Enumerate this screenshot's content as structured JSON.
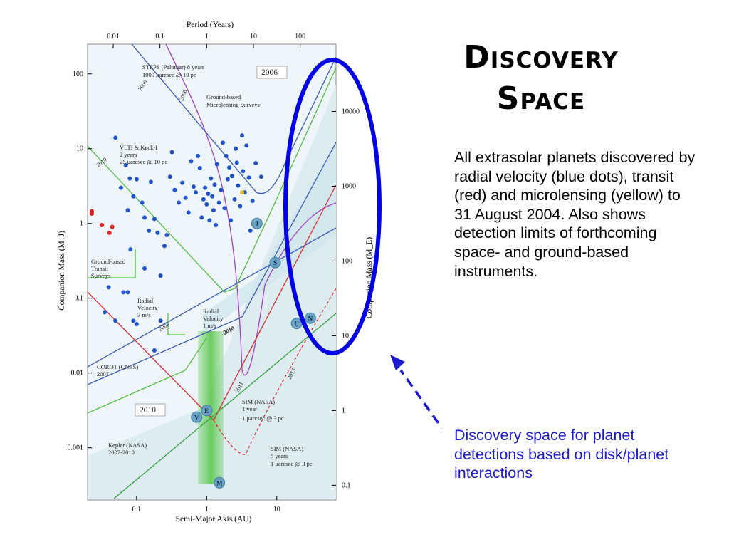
{
  "slide": {
    "title_line1": "Discovery",
    "title_line2": "Space",
    "description": "All extrasolar planets discovered by radial velocity (blue dots), transit (red) and microlensing (yellow) to 31 August 2004. Also shows detection limits of forthcoming space- and ground-based instruments.",
    "annotation": "Discovery space for planet detections based on disk/planet interactions",
    "annotation_color": "#1a1acc",
    "highlight_ellipse_color": "#0000e6"
  },
  "chart_data": {
    "type": "scatter",
    "x_scale": "log",
    "y_scale": "log",
    "xlabel": "Semi-Major Axis (AU)",
    "ylabel": "Companion Mass (M_J)",
    "top_axis_label": "Period (Years)",
    "right_axis_label": "Companion Mass (M_E)",
    "xlim": [
      0.02,
      70
    ],
    "ylim": [
      0.0002,
      250
    ],
    "x_ticks": [
      {
        "v": 0.1,
        "label": "0.1"
      },
      {
        "v": 1,
        "label": "1"
      },
      {
        "v": 10,
        "label": "10"
      }
    ],
    "y_ticks": [
      {
        "v": 100,
        "label": "100"
      },
      {
        "v": 10,
        "label": "10"
      },
      {
        "v": 1,
        "label": "1"
      },
      {
        "v": 0.1,
        "label": "0.1"
      },
      {
        "v": 0.01,
        "label": "0.01"
      },
      {
        "v": 0.001,
        "label": "0.001"
      }
    ],
    "top_ticks": [
      {
        "v": 0.01,
        "label": "0.01"
      },
      {
        "v": 0.1,
        "label": "0.1"
      },
      {
        "v": 1,
        "label": "1"
      },
      {
        "v": 10,
        "label": "10"
      },
      {
        "v": 100,
        "label": "100"
      }
    ],
    "right_ticks": [
      {
        "v": 10000,
        "label": "10000"
      },
      {
        "v": 1000,
        "label": "1000"
      },
      {
        "v": 100,
        "label": "100"
      },
      {
        "v": 10,
        "label": "10"
      },
      {
        "v": 1,
        "label": "1"
      },
      {
        "v": 0.1,
        "label": "0.1"
      }
    ],
    "series": [
      {
        "name": "radial velocity",
        "color": "#1f54c9",
        "points": [
          [
            0.05,
            14
          ],
          [
            0.06,
            3
          ],
          [
            0.07,
            6
          ],
          [
            0.08,
            4
          ],
          [
            0.09,
            2.3
          ],
          [
            0.1,
            3.9
          ],
          [
            0.12,
            1.9
          ],
          [
            0.13,
            1.2
          ],
          [
            0.15,
            0.8
          ],
          [
            0.16,
            3.6
          ],
          [
            0.18,
            1.15
          ],
          [
            0.2,
            0.75
          ],
          [
            0.22,
            0.2
          ],
          [
            0.25,
            0.5
          ],
          [
            0.27,
            0.7
          ],
          [
            0.3,
            4.2
          ],
          [
            0.32,
            9
          ],
          [
            0.35,
            2.8
          ],
          [
            0.4,
            1.9
          ],
          [
            0.45,
            3.5
          ],
          [
            0.5,
            2.2
          ],
          [
            0.55,
            1.4
          ],
          [
            0.6,
            6.8
          ],
          [
            0.65,
            3.1
          ],
          [
            0.7,
            2.6
          ],
          [
            0.75,
            8
          ],
          [
            0.8,
            5.5
          ],
          [
            0.85,
            1.2
          ],
          [
            0.9,
            2.1
          ],
          [
            0.95,
            3
          ],
          [
            1.0,
            1.8
          ],
          [
            1.05,
            2.5
          ],
          [
            1.1,
            1.1
          ],
          [
            1.15,
            4
          ],
          [
            1.2,
            2.3
          ],
          [
            1.25,
            1.5
          ],
          [
            1.3,
            3.3
          ],
          [
            1.35,
            0.95
          ],
          [
            1.4,
            6.2
          ],
          [
            1.5,
            1.9
          ],
          [
            1.6,
            2.8
          ],
          [
            1.7,
            12
          ],
          [
            1.8,
            1.6
          ],
          [
            1.9,
            8
          ],
          [
            2.0,
            3.9
          ],
          [
            2.1,
            5.6
          ],
          [
            2.2,
            1.1
          ],
          [
            2.3,
            4.3
          ],
          [
            2.5,
            2.1
          ],
          [
            2.6,
            10
          ],
          [
            2.7,
            6.5
          ],
          [
            2.8,
            3.2
          ],
          [
            3.0,
            1.7
          ],
          [
            3.2,
            15
          ],
          [
            3.3,
            5
          ],
          [
            3.5,
            2.6
          ],
          [
            3.7,
            11
          ],
          [
            4.0,
            4.1
          ],
          [
            4.2,
            0.8
          ],
          [
            4.5,
            2.0
          ],
          [
            5.0,
            6.4
          ],
          [
            6.0,
            4.2
          ],
          [
            0.04,
            0.14
          ],
          [
            0.05,
            0.05
          ],
          [
            0.035,
            0.065
          ],
          [
            0.09,
            0.05
          ],
          [
            0.075,
            0.12
          ],
          [
            0.22,
            0.05
          ],
          [
            0.1,
            0.045
          ],
          [
            0.18,
            0.02
          ],
          [
            0.13,
            0.25
          ],
          [
            0.075,
            1.5
          ],
          [
            0.082,
            0.45
          ],
          [
            0.065,
            0.12
          ]
        ]
      },
      {
        "name": "transit",
        "color": "#e02020",
        "points": [
          [
            0.023,
            1.35
          ],
          [
            0.023,
            1.45
          ],
          [
            0.032,
            0.95
          ],
          [
            0.041,
            0.75
          ],
          [
            0.045,
            0.9
          ]
        ]
      },
      {
        "name": "microlensing",
        "color": "#e0c020",
        "points": [
          [
            3.2,
            2.6
          ]
        ]
      }
    ],
    "solar_system_planets": [
      {
        "label": "J",
        "a": 5.2,
        "m": 1.0
      },
      {
        "label": "S",
        "a": 9.5,
        "m": 0.3
      },
      {
        "label": "U",
        "a": 19.2,
        "m": 0.046
      },
      {
        "label": "N",
        "a": 30.1,
        "m": 0.054
      },
      {
        "label": "E",
        "a": 1.0,
        "m": 0.00315
      },
      {
        "label": "V",
        "a": 0.72,
        "m": 0.00257
      },
      {
        "label": "M",
        "a": 1.52,
        "m": 0.00034
      }
    ],
    "annotations": [
      {
        "text": "2006"
      },
      {
        "text": "STEPS (Palomar) 8 years"
      },
      {
        "text": "1000 μarcsec @ 10 pc"
      },
      {
        "text": "Ground-based"
      },
      {
        "text": "Microlensing Surveys"
      },
      {
        "text": "VLTI & Keck-I"
      },
      {
        "text": "2 years"
      },
      {
        "text": "25 μarcsec @ 10 pc"
      },
      {
        "text": "Ground-based"
      },
      {
        "text": "Transit"
      },
      {
        "text": "Surveys"
      },
      {
        "text": "Radial"
      },
      {
        "text": "Velocity"
      },
      {
        "text": "3 m/s"
      },
      {
        "text": "Radial"
      },
      {
        "text": "Velocity"
      },
      {
        "text": "1 m/s"
      },
      {
        "text": "COROT (CNES)"
      },
      {
        "text": "2007"
      },
      {
        "text": "2010"
      },
      {
        "text": "SIM (NASA)"
      },
      {
        "text": "1 year"
      },
      {
        "text": "1 μarcsec @ 3 pc"
      },
      {
        "text": "Kepler (NASA)"
      },
      {
        "text": "2007-2010"
      },
      {
        "text": "SIM (NASA)"
      },
      {
        "text": "5 years"
      },
      {
        "text": "1 μarcsec @ 3 pc"
      },
      {
        "text": "2006"
      },
      {
        "text": "2006"
      },
      {
        "text": "2010"
      },
      {
        "text": "2010"
      },
      {
        "text": "2006"
      },
      {
        "text": "2010"
      },
      {
        "text": "2011"
      },
      {
        "text": "2015"
      }
    ]
  }
}
